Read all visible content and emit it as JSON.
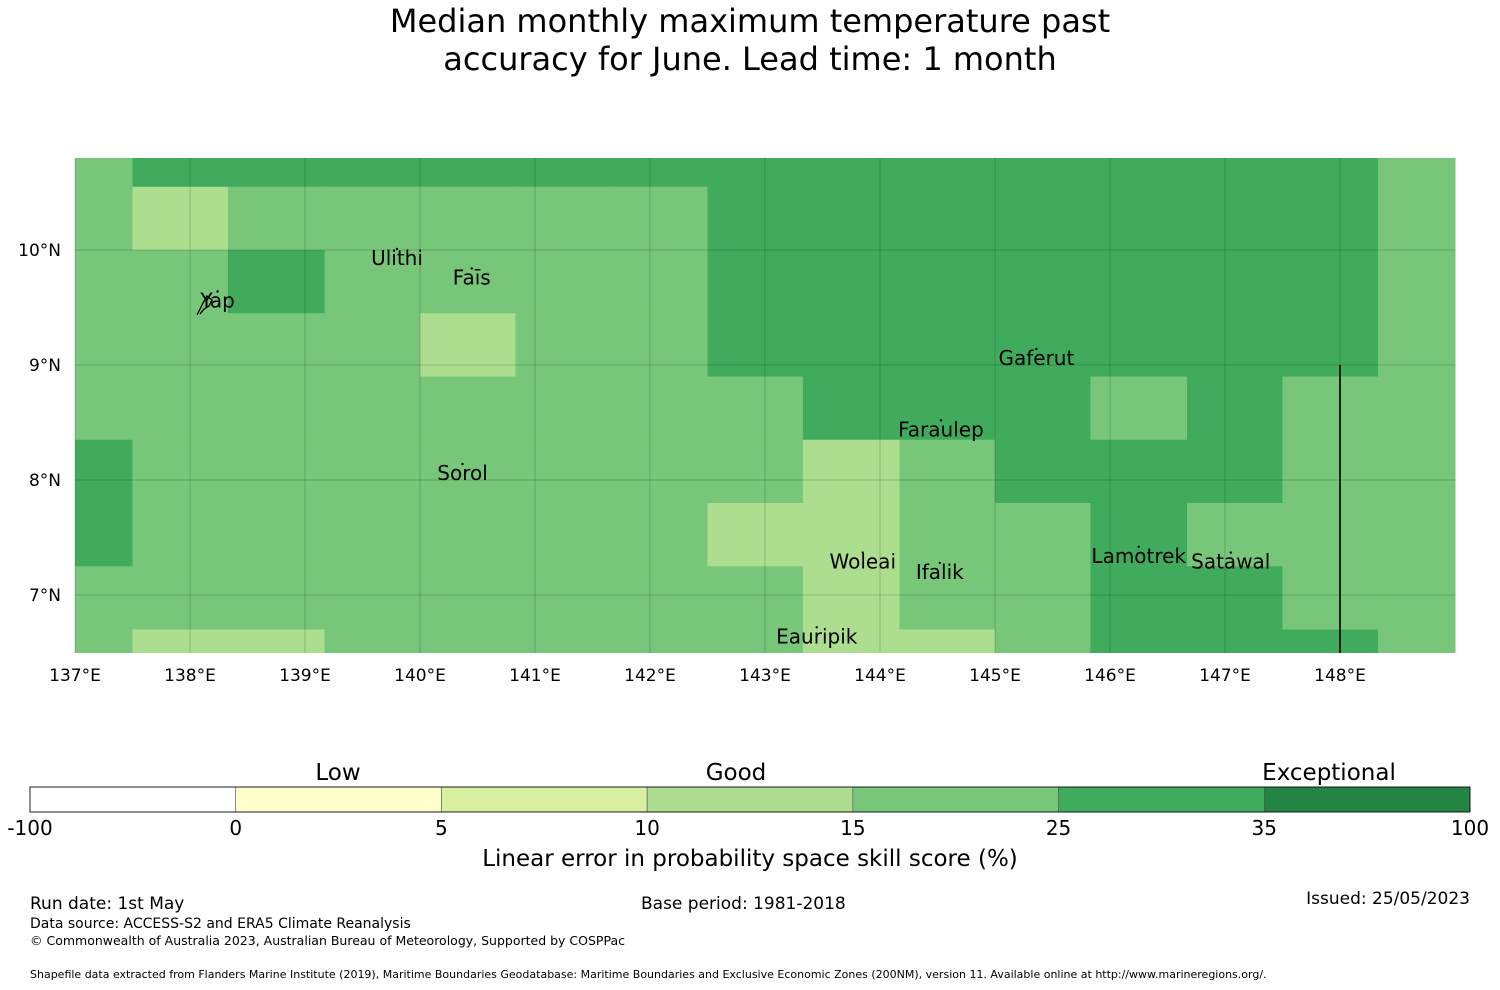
{
  "title": {
    "line1": "Median monthly maximum temperature past",
    "line2": "accuracy for June. Lead time: 1 month"
  },
  "map": {
    "lon_range": [
      137,
      149
    ],
    "lat_range": [
      6.5,
      10.8
    ],
    "lon_ticks": [
      {
        "value": 137,
        "label": "137°E"
      },
      {
        "value": 138,
        "label": "138°E"
      },
      {
        "value": 139,
        "label": "139°E"
      },
      {
        "value": 140,
        "label": "140°E"
      },
      {
        "value": 141,
        "label": "141°E"
      },
      {
        "value": 142,
        "label": "142°E"
      },
      {
        "value": 143,
        "label": "143°E"
      },
      {
        "value": 144,
        "label": "144°E"
      },
      {
        "value": 145,
        "label": "145°E"
      },
      {
        "value": 146,
        "label": "146°E"
      },
      {
        "value": 147,
        "label": "147°E"
      },
      {
        "value": 148,
        "label": "148°E"
      }
    ],
    "lat_ticks": [
      {
        "value": 10,
        "label": "10°N"
      },
      {
        "value": 9,
        "label": "9°N"
      },
      {
        "value": 8,
        "label": "8°N"
      },
      {
        "value": 7,
        "label": "7°N"
      }
    ],
    "grid_lines": true,
    "grid": {
      "lon_edges": [
        137.0,
        137.5,
        138.33,
        139.17,
        140.0,
        140.83,
        141.67,
        142.5,
        143.33,
        144.17,
        145.0,
        145.83,
        146.67,
        147.5,
        148.33,
        149.0
      ],
      "lat_edges": [
        10.8,
        10.55,
        10.0,
        9.45,
        8.9,
        8.35,
        7.8,
        7.25,
        6.7,
        6.5
      ],
      "skill_class": [
        [
          4,
          5,
          5,
          5,
          5,
          5,
          5,
          5,
          5,
          5,
          5,
          5,
          5,
          5,
          4
        ],
        [
          4,
          3,
          4,
          4,
          4,
          4,
          4,
          5,
          5,
          5,
          5,
          5,
          5,
          5,
          4
        ],
        [
          4,
          4,
          5,
          4,
          4,
          4,
          4,
          5,
          5,
          5,
          5,
          5,
          5,
          5,
          4
        ],
        [
          4,
          4,
          4,
          4,
          3,
          4,
          4,
          5,
          5,
          5,
          5,
          5,
          5,
          5,
          4
        ],
        [
          4,
          4,
          4,
          4,
          4,
          4,
          4,
          4,
          5,
          5,
          5,
          4,
          5,
          4,
          4
        ],
        [
          5,
          4,
          4,
          4,
          4,
          4,
          4,
          4,
          3,
          4,
          5,
          5,
          5,
          4,
          4
        ],
        [
          5,
          4,
          4,
          4,
          4,
          4,
          4,
          3,
          3,
          4,
          4,
          5,
          4,
          4,
          4
        ],
        [
          4,
          4,
          4,
          4,
          4,
          4,
          4,
          4,
          3,
          4,
          4,
          5,
          5,
          4,
          4
        ],
        [
          4,
          3,
          3,
          4,
          4,
          4,
          4,
          4,
          3,
          3,
          4,
          5,
          5,
          5,
          4
        ]
      ]
    },
    "boundary_line": {
      "lon": 148.0,
      "lat_from": 6.5,
      "lat_to": 9.0
    },
    "places": [
      {
        "name": "Ulithi",
        "lon": 139.8,
        "lat": 9.87
      },
      {
        "name": "Faīs",
        "lon": 140.45,
        "lat": 9.7
      },
      {
        "name": "Yap",
        "lon": 138.24,
        "lat": 9.5
      },
      {
        "name": "Gaferut",
        "lon": 145.36,
        "lat": 9.0
      },
      {
        "name": "Faraulep",
        "lon": 144.53,
        "lat": 8.38
      },
      {
        "name": "Sorol",
        "lon": 140.37,
        "lat": 8.0
      },
      {
        "name": "Woleai",
        "lon": 143.85,
        "lat": 7.23
      },
      {
        "name": "Ifalik",
        "lon": 144.52,
        "lat": 7.14
      },
      {
        "name": "Lamotrek",
        "lon": 146.25,
        "lat": 7.28
      },
      {
        "name": "Satawal",
        "lon": 147.05,
        "lat": 7.23
      },
      {
        "name": "Eauripik",
        "lon": 143.45,
        "lat": 6.58
      }
    ]
  },
  "colorbar": {
    "classes": [
      {
        "from": -100,
        "to": 0,
        "color": "#ffffff"
      },
      {
        "from": 0,
        "to": 5,
        "color": "#ffffcc"
      },
      {
        "from": 5,
        "to": 10,
        "color": "#d9f0a3"
      },
      {
        "from": 10,
        "to": 15,
        "color": "#addd8e"
      },
      {
        "from": 15,
        "to": 25,
        "color": "#78c679"
      },
      {
        "from": 25,
        "to": 35,
        "color": "#41ab5d"
      },
      {
        "from": 35,
        "to": 100,
        "color": "#238443"
      }
    ],
    "ticks": [
      "-100",
      "0",
      "5",
      "10",
      "15",
      "25",
      "35",
      "100"
    ],
    "category_labels": {
      "low": "Low",
      "good": "Good",
      "exceptional": "Exceptional"
    },
    "axis_label": "Linear error in probability space skill score (%)"
  },
  "footer": {
    "run_date": "Run date: 1st May",
    "base_period": "Base period: 1981-2018",
    "issued": "Issued: 25/05/2023",
    "data_source": "Data source: ACCESS-S2 and ERA5 Climate Reanalysis",
    "copyright": "© Commonwealth of Australia 2023, Australian Bureau of Meteorology, Supported by COSPPac",
    "shapefile": "Shapefile data extracted from Flanders Marine Institute (2019), Maritime Boundaries Geodatabase: Maritime Boundaries and Exclusive Economic Zones (200NM), version 11. Available online at http://www.marineregions.org/."
  }
}
